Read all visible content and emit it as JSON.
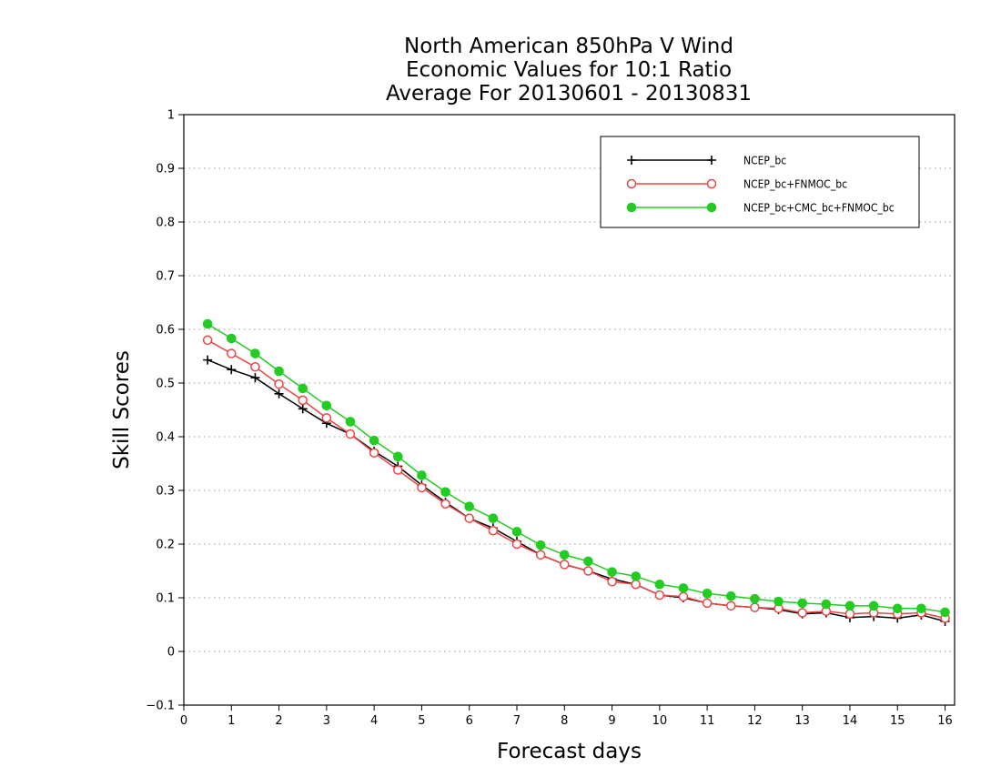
{
  "chart_data": {
    "type": "line",
    "title_lines": [
      "North American 850hPa V Wind",
      "Economic Values for 10:1 Ratio",
      "Average For 20130601 - 20130831"
    ],
    "xlabel": "Forecast days",
    "ylabel": "Skill Scores",
    "xlim": [
      0,
      16.2
    ],
    "ylim": [
      -0.1,
      1
    ],
    "xticks": [
      0,
      1,
      2,
      3,
      4,
      5,
      6,
      7,
      8,
      9,
      10,
      11,
      12,
      13,
      14,
      15,
      16
    ],
    "xtick_labels": [
      "0",
      "1",
      "2",
      "3",
      "4",
      "5",
      "6",
      "7",
      "8",
      "9",
      "10",
      "11",
      "12",
      "13",
      "14",
      "15",
      "16"
    ],
    "yticks": [
      -0.1,
      0,
      0.1,
      0.2,
      0.3,
      0.4,
      0.5,
      0.6,
      0.7,
      0.8,
      0.9,
      1
    ],
    "ytick_labels": [
      "−0.1",
      "0",
      "0.1",
      "0.2",
      "0.3",
      "0.4",
      "0.5",
      "0.6",
      "0.7",
      "0.8",
      "0.9",
      "1"
    ],
    "grid": "horizontal dotted",
    "legend_position": "top-right",
    "x": [
      0.5,
      1,
      1.5,
      2,
      2.5,
      3,
      3.5,
      4,
      4.5,
      5,
      5.5,
      6,
      6.5,
      7,
      7.5,
      8,
      8.5,
      9,
      9.5,
      10,
      10.5,
      11,
      11.5,
      12,
      12.5,
      13,
      13.5,
      14,
      14.5,
      15,
      15.5,
      16
    ],
    "series": [
      {
        "name": "NCEP_bc",
        "color": "#000000",
        "marker": "plus",
        "values": [
          0.543,
          0.525,
          0.51,
          0.48,
          0.452,
          0.425,
          0.405,
          0.373,
          0.345,
          0.31,
          0.278,
          0.248,
          0.23,
          0.205,
          0.18,
          0.162,
          0.15,
          0.135,
          0.125,
          0.105,
          0.1,
          0.09,
          0.085,
          0.082,
          0.078,
          0.07,
          0.072,
          0.063,
          0.065,
          0.062,
          0.068,
          0.056
        ]
      },
      {
        "name": "NCEP_bc+FNMOC_bc",
        "color": "#ee4444",
        "marker": "open-circle",
        "values": [
          0.58,
          0.555,
          0.53,
          0.498,
          0.468,
          0.435,
          0.405,
          0.37,
          0.338,
          0.305,
          0.275,
          0.248,
          0.225,
          0.2,
          0.18,
          0.162,
          0.15,
          0.13,
          0.125,
          0.105,
          0.102,
          0.09,
          0.085,
          0.082,
          0.08,
          0.072,
          0.075,
          0.07,
          0.072,
          0.07,
          0.072,
          0.062
        ]
      },
      {
        "name": "NCEP_bc+CMC_bc+FNMOC_bc",
        "color": "#22cc22",
        "marker": "filled-circle",
        "values": [
          0.61,
          0.583,
          0.555,
          0.522,
          0.49,
          0.458,
          0.428,
          0.393,
          0.363,
          0.328,
          0.297,
          0.27,
          0.248,
          0.223,
          0.198,
          0.18,
          0.168,
          0.148,
          0.14,
          0.125,
          0.118,
          0.108,
          0.103,
          0.098,
          0.093,
          0.09,
          0.088,
          0.085,
          0.085,
          0.08,
          0.08,
          0.073
        ]
      }
    ]
  }
}
